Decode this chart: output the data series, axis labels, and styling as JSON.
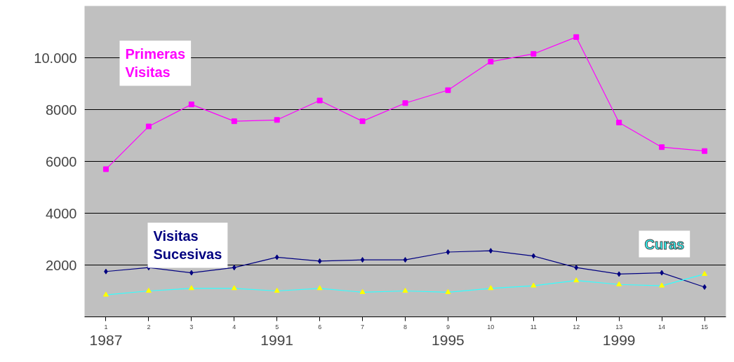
{
  "chart_data": {
    "type": "line",
    "categories": [
      "1",
      "2",
      "3",
      "4",
      "5",
      "6",
      "7",
      "8",
      "9",
      "10",
      "11",
      "12",
      "13",
      "14",
      "15"
    ],
    "series": [
      {
        "name": "Primeras Visitas",
        "color": "#ff00ff",
        "marker": "square",
        "values": [
          5700,
          7350,
          8200,
          7550,
          7600,
          8350,
          7550,
          8250,
          8750,
          9850,
          10150,
          10800,
          7500,
          6550,
          6400
        ]
      },
      {
        "name": "Visitas Sucesivas",
        "color": "#000080",
        "marker": "diamond",
        "values": [
          1750,
          1900,
          1700,
          1900,
          2300,
          2150,
          2200,
          2200,
          2500,
          2550,
          2350,
          1900,
          1650,
          1700,
          1150
        ]
      },
      {
        "name": "Curas",
        "color": "#33ffff",
        "colors": [
          "#ffff00",
          "#ffff00",
          "#ffff00",
          "#ffff00",
          "#ffff00",
          "#ffff00",
          "#ffff00",
          "#ffff00",
          "#ffff00",
          "#ffff00",
          "#ffff00",
          "#ffff00",
          "#ffff00",
          "#ffff00",
          "#ffff00"
        ],
        "marker": "triangle",
        "values": [
          850,
          1000,
          1100,
          1100,
          1000,
          1100,
          950,
          1000,
          950,
          1100,
          1200,
          1400,
          1250,
          1200,
          1650
        ]
      }
    ],
    "ylim": [
      0,
      12000
    ],
    "yticks": [
      2000,
      4000,
      6000,
      8000,
      {
        "value": 10000,
        "label": "10.000"
      }
    ],
    "grid": "y",
    "annotations": [
      "1987",
      "1991",
      "1995",
      "1999"
    ]
  }
}
